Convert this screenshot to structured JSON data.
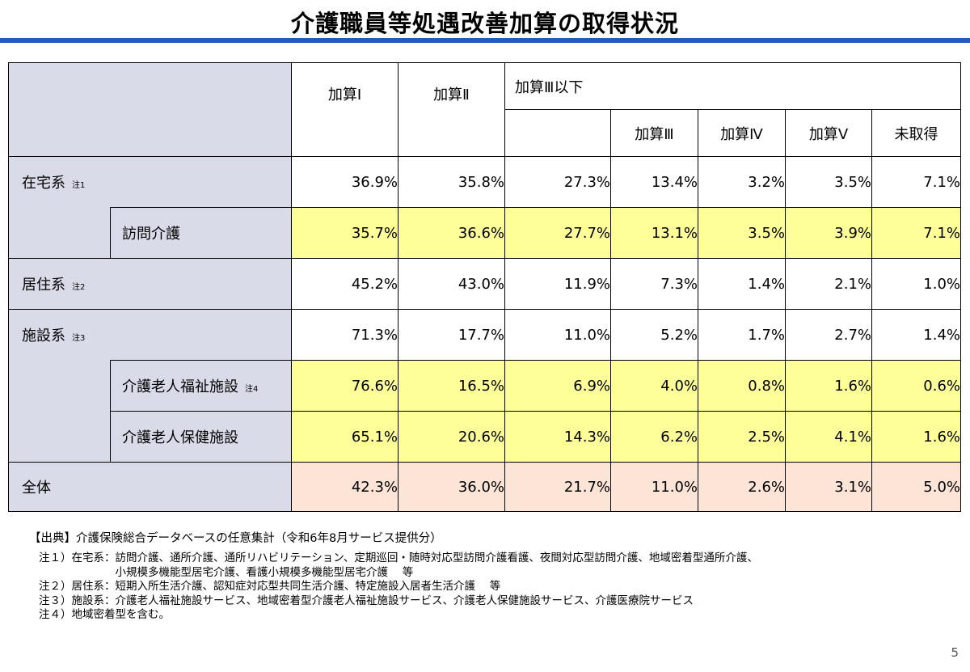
{
  "title": "介護職員等処遇改善加算の取得状況",
  "header": {
    "kasan1": "加算Ⅰ",
    "kasan2": "加算Ⅱ",
    "kasan3_below": "加算Ⅲ以下",
    "kasan3": "加算Ⅲ",
    "kasan4": "加算Ⅳ",
    "kasan5": "加算Ⅴ",
    "not_acquired": "未取得"
  },
  "rows": {
    "zaitaku": {
      "label": "在宅系",
      "note": "注1",
      "values": [
        "36.9%",
        "35.8%",
        "27.3%",
        "13.4%",
        "3.2%",
        "3.5%",
        "7.1%"
      ]
    },
    "houmon": {
      "label": "訪問介護",
      "values": [
        "35.7%",
        "36.6%",
        "27.7%",
        "13.1%",
        "3.5%",
        "3.9%",
        "7.1%"
      ]
    },
    "kyoju": {
      "label": "居住系",
      "note": "注2",
      "values": [
        "45.2%",
        "43.0%",
        "11.9%",
        "7.3%",
        "1.4%",
        "2.1%",
        "1.0%"
      ]
    },
    "shisetsu": {
      "label": "施設系",
      "note": "注3",
      "values": [
        "71.3%",
        "17.7%",
        "11.0%",
        "5.2%",
        "1.7%",
        "2.7%",
        "1.4%"
      ]
    },
    "tokuyou": {
      "label": "介護老人福祉施設",
      "note": "注4",
      "values": [
        "76.6%",
        "16.5%",
        "6.9%",
        "4.0%",
        "0.8%",
        "1.6%",
        "0.6%"
      ]
    },
    "rouken": {
      "label": "介護老人保健施設",
      "values": [
        "65.1%",
        "20.6%",
        "14.3%",
        "6.2%",
        "2.5%",
        "4.1%",
        "1.6%"
      ]
    },
    "total": {
      "label": "全体",
      "values": [
        "42.3%",
        "36.0%",
        "21.7%",
        "11.0%",
        "2.6%",
        "3.1%",
        "5.0%"
      ]
    }
  },
  "source": "【出典】介護保険総合データベースの任意集計（令和6年8月サービス提供分）",
  "notes": [
    "注１）在宅系：訪問介護、通所介護、通所リハビリテーション、定期巡回・随時対応型訪問介護看護、夜間対応型訪問介護、地域密着型通所介護、",
    "　　　　　　　小規模多機能型居宅介護、看護小規模多機能型居宅介護　 等",
    "注２）居住系：短期入所生活介護、認知症対応型共同生活介護、特定施設入居者生活介護　 等",
    "注３）施設系：介護老人福祉施設サービス、地域密着型介護老人福祉施設サービス、介護老人保健施設サービス、介護医療院サービス",
    "注４）地域密着型を含む。"
  ],
  "page_number": "5"
}
